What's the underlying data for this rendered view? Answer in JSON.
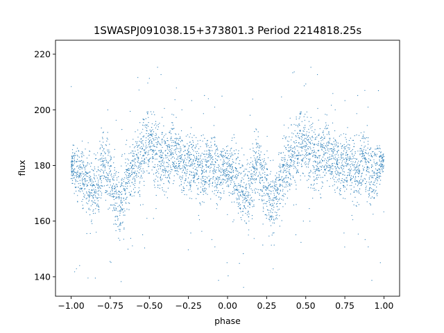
{
  "chart_data": {
    "type": "scatter",
    "title": "1SWASPJ091038.15+373801.3 Period 2214818.25s",
    "xlabel": "phase",
    "ylabel": "flux",
    "xlim": [
      -1.1,
      1.1
    ],
    "ylim": [
      133,
      225
    ],
    "xticks": [
      -1.0,
      -0.75,
      -0.5,
      -0.25,
      0.0,
      0.25,
      0.5,
      0.75,
      1.0
    ],
    "xtick_labels": [
      "−1.00",
      "−0.75",
      "−0.50",
      "−0.25",
      "0.00",
      "0.25",
      "0.50",
      "0.75",
      "1.00"
    ],
    "yticks": [
      140,
      160,
      180,
      200,
      220
    ],
    "ytick_labels": [
      "140",
      "160",
      "180",
      "200",
      "220"
    ],
    "grid": false,
    "marker_color": "#1f77b4",
    "folding": "points repeat with a period of 1.0 in phase",
    "series": [
      {
        "x": [
          -1.0,
          -0.99,
          -0.97,
          -0.95,
          -0.93,
          -0.91,
          -0.89,
          -0.87,
          -0.85,
          -0.83,
          -0.81,
          -0.79,
          -0.77,
          -0.75,
          -0.73,
          -0.71,
          -0.69,
          -0.67,
          -0.65,
          -0.63,
          -0.61,
          -0.59,
          -0.57,
          -0.55,
          -0.53,
          -0.51,
          -0.49,
          -0.47,
          -0.45,
          -0.43,
          -0.41,
          -0.39,
          -0.37,
          -0.35,
          -0.33,
          -0.31,
          -0.29,
          -0.27,
          -0.25,
          -0.23,
          -0.21,
          -0.19,
          -0.17,
          -0.15,
          -0.13,
          -0.11,
          -0.09,
          -0.07,
          -0.05,
          -0.03,
          -0.01,
          0.01,
          0.03,
          0.05,
          0.07,
          0.09,
          0.11,
          0.13,
          0.15,
          0.17,
          0.19,
          0.21,
          0.23,
          0.25,
          0.27,
          0.29,
          0.31,
          0.33,
          0.35,
          0.37,
          0.39,
          0.41,
          0.43,
          0.45,
          0.47,
          0.49,
          0.51,
          0.53,
          0.55,
          0.57,
          0.59,
          0.61,
          0.63,
          0.65,
          0.67,
          0.69,
          0.71,
          0.73,
          0.75,
          0.77,
          0.79,
          0.81,
          0.83,
          0.85,
          0.87,
          0.89,
          0.91,
          0.93,
          0.95,
          0.97,
          0.99
        ],
        "y": [
          180,
          180,
          178,
          177,
          176,
          175,
          172,
          170,
          171,
          173,
          178,
          182,
          178,
          175,
          172,
          168,
          166,
          170,
          174,
          177,
          179,
          180,
          182,
          184,
          186,
          188,
          187,
          185,
          184,
          183,
          183,
          182,
          184,
          186,
          185,
          183,
          181,
          180,
          180,
          181,
          181,
          180,
          179,
          178,
          180,
          183,
          182,
          178,
          176,
          178,
          180,
          178,
          177,
          176,
          175,
          172,
          170,
          171,
          173,
          178,
          182,
          178,
          175,
          172,
          168,
          166,
          170,
          174,
          177,
          179,
          180,
          182,
          184,
          186,
          188,
          187,
          185,
          184,
          183,
          183,
          182,
          184,
          186,
          185,
          183,
          181,
          180,
          180,
          181,
          181,
          180,
          179,
          178,
          180,
          183,
          182,
          178,
          176,
          178,
          180,
          181
        ],
        "spread": [
          3,
          5,
          7,
          8,
          9,
          9,
          10,
          10,
          10,
          10,
          10,
          10,
          10,
          10,
          10,
          10,
          10,
          10,
          10,
          10,
          10,
          10,
          10,
          10,
          10,
          10,
          10,
          10,
          10,
          10,
          10,
          10,
          10,
          10,
          10,
          10,
          10,
          10,
          10,
          10,
          10,
          10,
          10,
          10,
          10,
          10,
          10,
          10,
          10,
          9,
          7,
          7,
          9,
          10,
          10,
          10,
          10,
          10,
          10,
          10,
          10,
          10,
          10,
          10,
          10,
          10,
          10,
          10,
          10,
          10,
          10,
          10,
          10,
          10,
          10,
          10,
          10,
          10,
          10,
          10,
          10,
          10,
          10,
          10,
          10,
          10,
          10,
          10,
          10,
          10,
          10,
          10,
          10,
          10,
          10,
          10,
          10,
          10,
          10,
          8,
          3
        ]
      }
    ]
  }
}
